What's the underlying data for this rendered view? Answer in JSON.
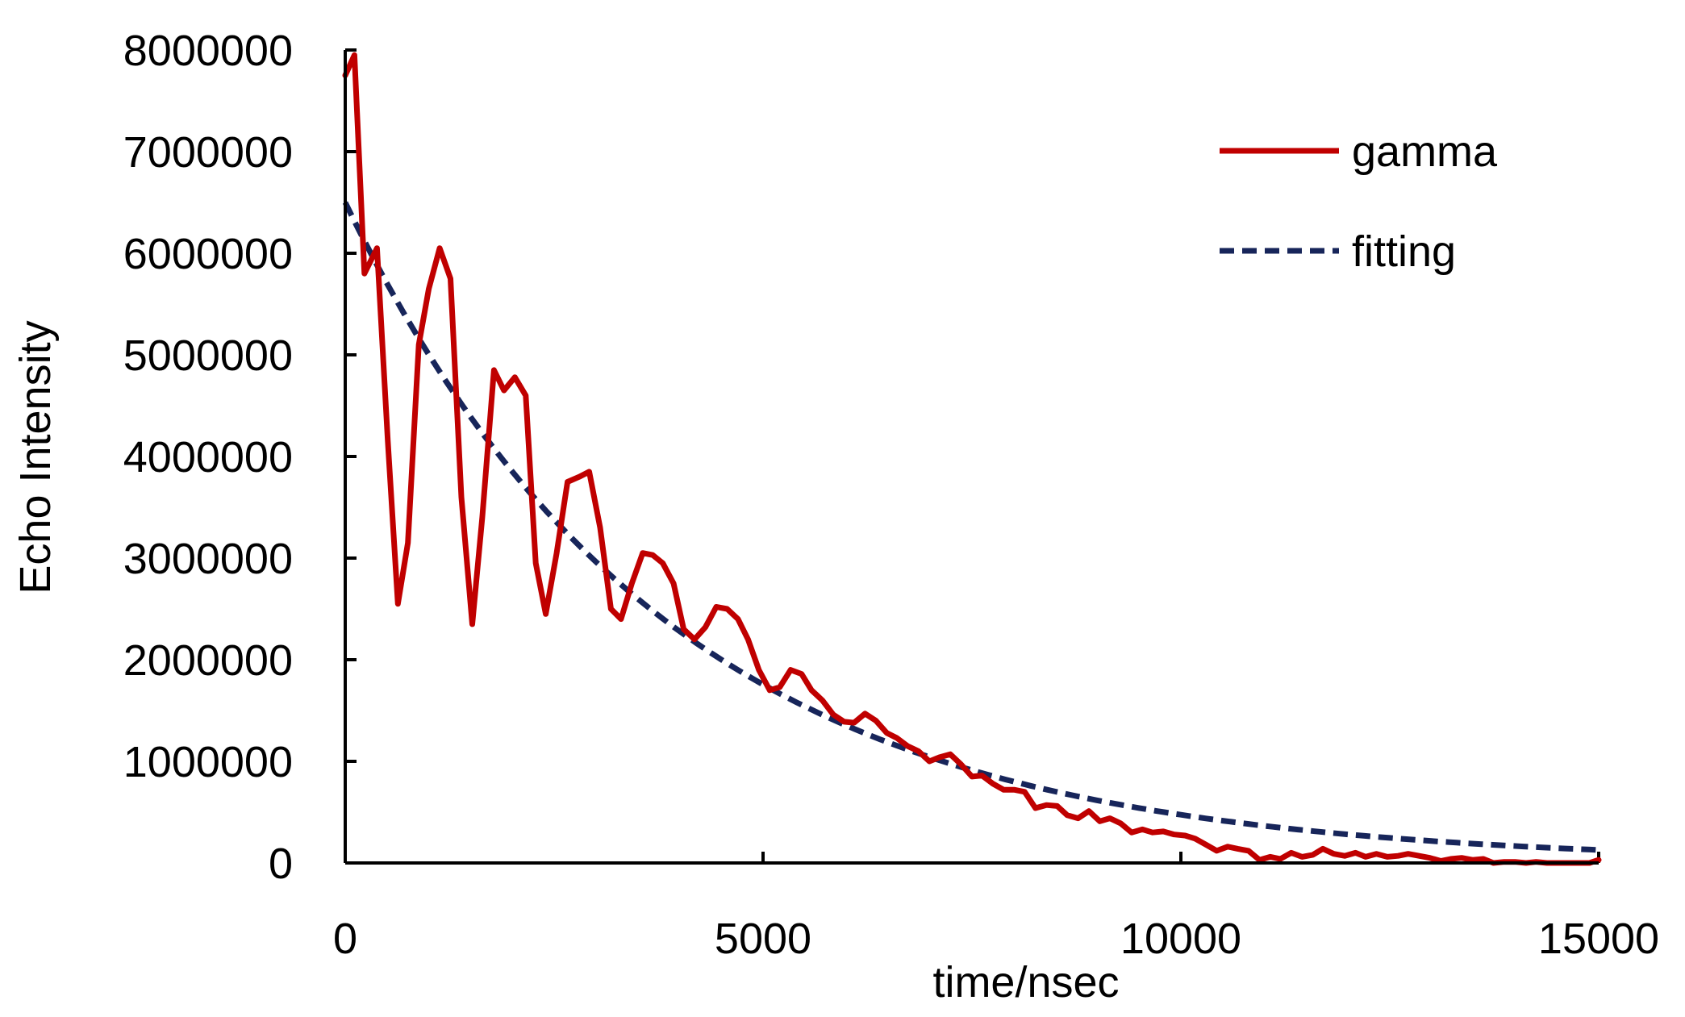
{
  "chart_data": {
    "type": "line",
    "xlabel": "time/nsec",
    "ylabel": "Echo Intensity",
    "xlim": [
      0,
      15000
    ],
    "ylim": [
      0,
      8000000
    ],
    "x_ticks": [
      0,
      5000,
      10000,
      15000
    ],
    "y_ticks": [
      0,
      1000000,
      2000000,
      3000000,
      4000000,
      5000000,
      6000000,
      7000000,
      8000000
    ],
    "x_tick_labels": [
      "0",
      "5000",
      "10000",
      "15000"
    ],
    "y_tick_labels": [
      "0",
      "1000000",
      "2000000",
      "3000000",
      "4000000",
      "5000000",
      "6000000",
      "7000000",
      "8000000"
    ],
    "grid": false,
    "legend_position": "top-right",
    "series": [
      {
        "name": "gamma",
        "color": "#c00000",
        "style": "solid",
        "points": [
          [
            0,
            7750000
          ],
          [
            110,
            7950000
          ],
          [
            230,
            5800000
          ],
          [
            380,
            6050000
          ],
          [
            510,
            4150000
          ],
          [
            630,
            2550000
          ],
          [
            750,
            3150000
          ],
          [
            880,
            5100000
          ],
          [
            1000,
            5650000
          ],
          [
            1130,
            6050000
          ],
          [
            1260,
            5750000
          ],
          [
            1390,
            3600000
          ],
          [
            1520,
            2350000
          ],
          [
            1640,
            3400000
          ],
          [
            1780,
            4850000
          ],
          [
            1900,
            4650000
          ],
          [
            2030,
            4780000
          ],
          [
            2160,
            4600000
          ],
          [
            2280,
            2950000
          ],
          [
            2400,
            2450000
          ],
          [
            2530,
            3050000
          ],
          [
            2660,
            3750000
          ],
          [
            2800,
            3800000
          ],
          [
            2920,
            3850000
          ],
          [
            3050,
            3300000
          ],
          [
            3180,
            2500000
          ],
          [
            3300,
            2400000
          ],
          [
            3430,
            2750000
          ],
          [
            3560,
            3050000
          ],
          [
            3680,
            3030000
          ],
          [
            3800,
            2950000
          ],
          [
            3930,
            2750000
          ],
          [
            4050,
            2300000
          ],
          [
            4180,
            2200000
          ],
          [
            4310,
            2320000
          ],
          [
            4440,
            2520000
          ],
          [
            4570,
            2500000
          ],
          [
            4700,
            2400000
          ],
          [
            4820,
            2200000
          ],
          [
            4950,
            1900000
          ],
          [
            5080,
            1700000
          ],
          [
            5200,
            1730000
          ],
          [
            5330,
            1900000
          ],
          [
            5460,
            1860000
          ],
          [
            5580,
            1700000
          ],
          [
            5710,
            1600000
          ],
          [
            5840,
            1460000
          ],
          [
            5970,
            1390000
          ],
          [
            6090,
            1380000
          ],
          [
            6220,
            1470000
          ],
          [
            6350,
            1400000
          ],
          [
            6480,
            1280000
          ],
          [
            6600,
            1230000
          ],
          [
            6730,
            1150000
          ],
          [
            6860,
            1100000
          ],
          [
            6990,
            1000000
          ],
          [
            7110,
            1040000
          ],
          [
            7240,
            1070000
          ],
          [
            7370,
            970000
          ],
          [
            7500,
            850000
          ],
          [
            7620,
            860000
          ],
          [
            7750,
            780000
          ],
          [
            7880,
            720000
          ],
          [
            8010,
            720000
          ],
          [
            8130,
            700000
          ],
          [
            8260,
            540000
          ],
          [
            8390,
            570000
          ],
          [
            8520,
            560000
          ],
          [
            8640,
            470000
          ],
          [
            8770,
            440000
          ],
          [
            8900,
            510000
          ],
          [
            9030,
            410000
          ],
          [
            9150,
            440000
          ],
          [
            9280,
            390000
          ],
          [
            9410,
            300000
          ],
          [
            9540,
            330000
          ],
          [
            9660,
            300000
          ],
          [
            9790,
            310000
          ],
          [
            9920,
            280000
          ],
          [
            10050,
            270000
          ],
          [
            10170,
            240000
          ],
          [
            10300,
            180000
          ],
          [
            10430,
            120000
          ],
          [
            10560,
            160000
          ],
          [
            10680,
            140000
          ],
          [
            10810,
            120000
          ],
          [
            10940,
            30000
          ],
          [
            11070,
            60000
          ],
          [
            11190,
            40000
          ],
          [
            11320,
            100000
          ],
          [
            11450,
            60000
          ],
          [
            11580,
            80000
          ],
          [
            11700,
            140000
          ],
          [
            11830,
            90000
          ],
          [
            11960,
            70000
          ],
          [
            12090,
            100000
          ],
          [
            12210,
            60000
          ],
          [
            12340,
            90000
          ],
          [
            12470,
            60000
          ],
          [
            12600,
            70000
          ],
          [
            12720,
            90000
          ],
          [
            12850,
            70000
          ],
          [
            12980,
            50000
          ],
          [
            13110,
            20000
          ],
          [
            13230,
            40000
          ],
          [
            13360,
            50000
          ],
          [
            13490,
            30000
          ],
          [
            13620,
            40000
          ],
          [
            13740,
            0
          ],
          [
            13870,
            10000
          ],
          [
            14000,
            10000
          ],
          [
            14130,
            0
          ],
          [
            14250,
            10000
          ],
          [
            14380,
            0
          ],
          [
            14510,
            0
          ],
          [
            14640,
            0
          ],
          [
            14760,
            0
          ],
          [
            14890,
            0
          ],
          [
            15000,
            30000
          ]
        ]
      },
      {
        "name": "fitting",
        "color": "#17255a",
        "style": "dashed",
        "model": {
          "A": 6500000,
          "tau": 3820
        }
      }
    ]
  }
}
